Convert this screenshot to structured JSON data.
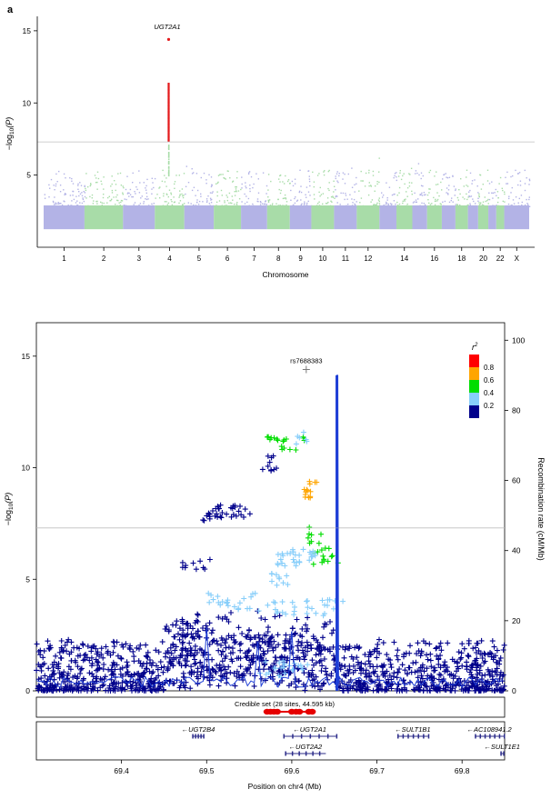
{
  "panel_label": "a",
  "colors": {
    "manhattan_a": "#b3b3e6",
    "manhattan_b": "#a8dca8",
    "significant": "#e41a1c",
    "threshold": "#bfbfbf",
    "recomb": "#1f3fd6",
    "credible_box": "#e60000",
    "gene": "#2c2c8a"
  },
  "chart_data": [
    {
      "type": "scatter",
      "title": "",
      "xlabel": "Chromosome",
      "ylabel": "−log10(P)",
      "ylabel_main": "−log",
      "ylabel_sub": "10",
      "ylabel_tail": "(P)",
      "ylim": [
        0,
        16
      ],
      "yticks": [
        "5",
        "10",
        "15"
      ],
      "xticks": [
        "1",
        "2",
        "3",
        "4",
        "5",
        "6",
        "7",
        "8",
        "9",
        "10",
        "11",
        "12",
        "14",
        "16",
        "18",
        "20",
        "22",
        "X"
      ],
      "threshold": 7.3,
      "top_hit_label": "UGT2A1",
      "top_hit": {
        "chromosome": "4",
        "value": 14.4
      },
      "grid": false
    },
    {
      "type": "scatter",
      "title": "",
      "xlabel": "Position on chr4 (Mb)",
      "ylabel": "−log10(P)",
      "ylabel_main": "−log",
      "ylabel_sub": "10",
      "ylabel_tail": "(P)",
      "y2label": "Recombination rate (cM/Mb)",
      "xlim": [
        69.3,
        69.85
      ],
      "ylim": [
        0,
        16.5
      ],
      "y2lim": [
        0,
        105
      ],
      "xticks": [
        "69.4",
        "69.5",
        "69.6",
        "69.7",
        "69.8"
      ],
      "xtick_values": [
        69.4,
        69.5,
        69.6,
        69.7,
        69.8
      ],
      "yticks": [
        "0",
        "5",
        "10",
        "15"
      ],
      "ytick_values": [
        0,
        5,
        10,
        15
      ],
      "y2ticks": [
        "0",
        "20",
        "40",
        "60",
        "80",
        "100"
      ],
      "y2tick_values": [
        0,
        20,
        40,
        60,
        80,
        100
      ],
      "threshold": 7.3,
      "lead_snp": {
        "label": "rs7688383",
        "x": 69.617,
        "y": 14.4
      },
      "recomb_peak": {
        "x": 69.653,
        "value": 90
      },
      "legend": {
        "title": "r",
        "title_sup": "2",
        "placement": "top-right",
        "labels": [
          "0.8",
          "0.6",
          "0.4",
          "0.2"
        ],
        "colors": [
          "#ff0000",
          "#ffa500",
          "#00dd00",
          "#87cefa",
          "#00008b"
        ]
      },
      "credible_set": {
        "label": "Credible set (28 sites, 44.595 kb)",
        "x": [
          69.571,
          69.575,
          69.579,
          69.583,
          69.6,
          69.605,
          69.609,
          69.62,
          69.624
        ]
      },
      "genes": [
        {
          "name": "UGT2B4",
          "arrow": "←",
          "row": 0,
          "start": 69.483,
          "end": 69.497
        },
        {
          "name": "UGT2A1",
          "arrow": "←",
          "row": 0,
          "start": 69.59,
          "end": 69.652
        },
        {
          "name": "SULT1B1",
          "arrow": "←",
          "row": 0,
          "start": 69.724,
          "end": 69.76
        },
        {
          "name": "AC108941.2",
          "arrow": "←",
          "row": 0,
          "start": 69.815,
          "end": 69.85
        },
        {
          "name": "UGT2A2",
          "arrow": "←",
          "row": 1,
          "start": 69.592,
          "end": 69.64
        },
        {
          "name": "SULT1E1",
          "arrow": "←",
          "row": 1,
          "start": 69.845,
          "end": 69.85
        }
      ]
    }
  ]
}
